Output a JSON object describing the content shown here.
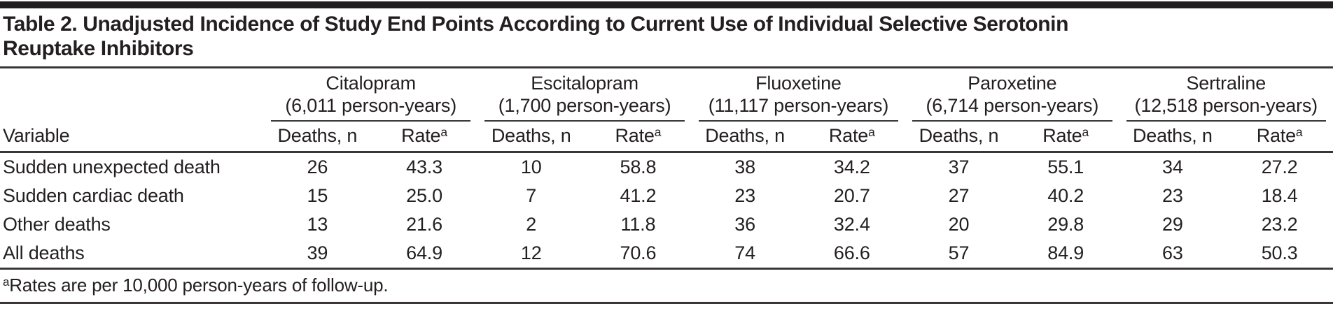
{
  "title": "Table 2. Unadjusted Incidence of Study End Points According to Current Use of Individual Selective Serotonin Reuptake Inhibitors",
  "table": {
    "variable_header": "Variable",
    "subheaders": {
      "deaths": "Deaths, n",
      "rate": "Rate",
      "rate_superscript": "a"
    },
    "groups": [
      {
        "name": "Citalopram",
        "person_years": "(6,011 person-years)"
      },
      {
        "name": "Escitalopram",
        "person_years": "(1,700 person-years)"
      },
      {
        "name": "Fluoxetine",
        "person_years": "(11,117 person-years)"
      },
      {
        "name": "Paroxetine",
        "person_years": "(6,714 person-years)"
      },
      {
        "name": "Sertraline",
        "person_years": "(12,518 person-years)"
      }
    ],
    "rows": [
      {
        "variable": "Sudden unexpected death",
        "values": [
          "26",
          "43.3",
          "10",
          "58.8",
          "38",
          "34.2",
          "37",
          "55.1",
          "34",
          "27.2"
        ]
      },
      {
        "variable": "Sudden cardiac death",
        "values": [
          "15",
          "25.0",
          "7",
          "41.2",
          "23",
          "20.7",
          "27",
          "40.2",
          "23",
          "18.4"
        ]
      },
      {
        "variable": "Other deaths",
        "values": [
          "13",
          "21.6",
          "2",
          "11.8",
          "36",
          "32.4",
          "20",
          "29.8",
          "29",
          "23.2"
        ]
      },
      {
        "variable": "All deaths",
        "values": [
          "39",
          "64.9",
          "12",
          "70.6",
          "74",
          "66.6",
          "57",
          "84.9",
          "63",
          "50.3"
        ]
      }
    ]
  },
  "footnote": {
    "superscript": "a",
    "text": "Rates are per 10,000 person-years of follow-up."
  },
  "colors": {
    "text": "#231f20",
    "rule": "#3a3637",
    "top_bar": "#231f20",
    "background": "#ffffff"
  }
}
